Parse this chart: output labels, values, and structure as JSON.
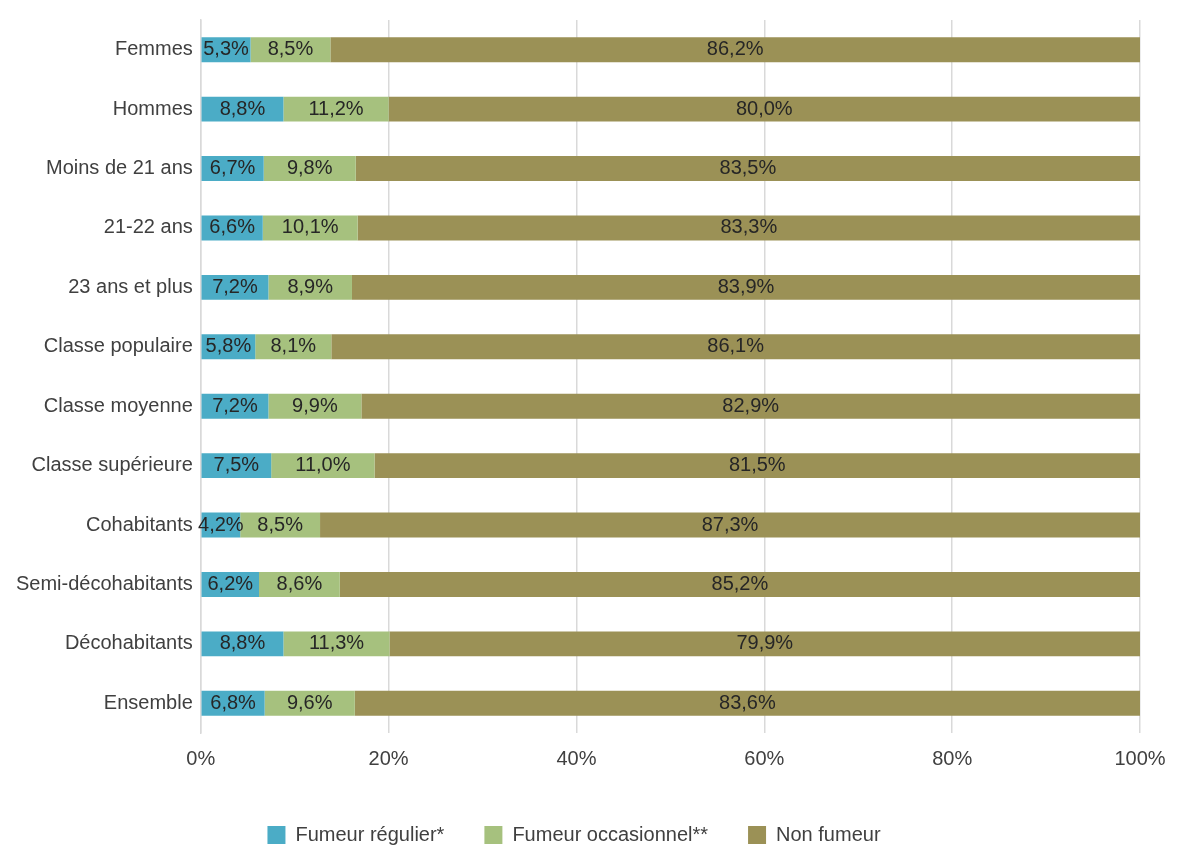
{
  "chart_data": {
    "type": "bar",
    "orientation": "horizontal",
    "stacked": true,
    "categories": [
      "Femmes",
      "Hommes",
      "Moins de 21 ans",
      "21-22 ans",
      "23 ans et plus",
      "Classe populaire",
      "Classe moyenne",
      "Classe supérieure",
      "Cohabitants",
      "Semi-décohabitants",
      "Décohabitants",
      "Ensemble"
    ],
    "series": [
      {
        "name": "Fumeur régulier*",
        "color": "#4bacc6",
        "values": [
          5.3,
          8.8,
          6.7,
          6.6,
          7.2,
          5.8,
          7.2,
          7.5,
          4.2,
          6.2,
          8.8,
          6.8
        ],
        "value_labels": [
          "5,3%",
          "8,8%",
          "6,7%",
          "6,6%",
          "7,2%",
          "5,8%",
          "7,2%",
          "7,5%",
          "4,2%",
          "6,2%",
          "8,8%",
          "6,8%"
        ]
      },
      {
        "name": "Fumeur occasionnel**",
        "color": "#a6c17e",
        "values": [
          8.5,
          11.2,
          9.8,
          10.1,
          8.9,
          8.1,
          9.9,
          11.0,
          8.5,
          8.6,
          11.3,
          9.6
        ],
        "value_labels": [
          "8,5%",
          "11,2%",
          "9,8%",
          "10,1%",
          "8,9%",
          "8,1%",
          "9,9%",
          "11,0%",
          "8,5%",
          "8,6%",
          "11,3%",
          "9,6%"
        ]
      },
      {
        "name": "Non fumeur",
        "color": "#9b9156",
        "values": [
          86.2,
          80.0,
          83.5,
          83.3,
          83.9,
          86.1,
          82.9,
          81.5,
          87.3,
          85.2,
          79.9,
          83.6
        ],
        "value_labels": [
          "86,2%",
          "80,0%",
          "83,5%",
          "83,3%",
          "83,9%",
          "86,1%",
          "82,9%",
          "81,5%",
          "87,3%",
          "85,2%",
          "79,9%",
          "83,6%"
        ]
      }
    ],
    "xlim": [
      0,
      100
    ],
    "xticks": [
      {
        "value": 0,
        "label": "0%"
      },
      {
        "value": 20,
        "label": "20%"
      },
      {
        "value": 40,
        "label": "40%"
      },
      {
        "value": 60,
        "label": "60%"
      },
      {
        "value": 80,
        "label": "80%"
      },
      {
        "value": 100,
        "label": "100%"
      }
    ],
    "grid": "x",
    "legend": "bottom"
  }
}
